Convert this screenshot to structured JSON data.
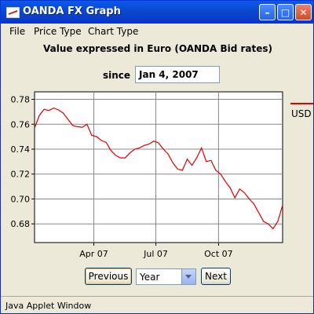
{
  "window": {
    "title": "OANDA FX Graph"
  },
  "menu": {
    "items": [
      "File",
      "Price Type",
      "Chart Type"
    ]
  },
  "header": {
    "title": "Value expressed in Euro (OANDA Bid rates)",
    "since_label": "since",
    "since_value": "Jan 4, 2007"
  },
  "controls": {
    "previous_label": "Previous",
    "period_value": "Year",
    "next_label": "Next"
  },
  "status": {
    "text": "Java Applet Window"
  },
  "chart_data": {
    "type": "line",
    "title": "",
    "xlabel": "",
    "ylabel": "",
    "x_tick_labels": [
      "Apr 07",
      "Jul 07",
      "Oct 07"
    ],
    "y_tick_labels": [
      "0.68",
      "0.70",
      "0.72",
      "0.74",
      "0.76",
      "0.78"
    ],
    "ylim": [
      0.665,
      0.786
    ],
    "grid": true,
    "legend": "right",
    "series": [
      {
        "name": "USD",
        "color": "#e00000",
        "x": [
          "2007-01-04",
          "2007-01-11",
          "2007-01-18",
          "2007-01-25",
          "2007-02-01",
          "2007-02-08",
          "2007-02-15",
          "2007-02-22",
          "2007-03-01",
          "2007-03-08",
          "2007-03-15",
          "2007-03-22",
          "2007-03-29",
          "2007-04-05",
          "2007-04-12",
          "2007-04-19",
          "2007-04-26",
          "2007-05-03",
          "2007-05-10",
          "2007-05-17",
          "2007-05-24",
          "2007-05-31",
          "2007-06-07",
          "2007-06-14",
          "2007-06-21",
          "2007-06-28",
          "2007-07-05",
          "2007-07-12",
          "2007-07-19",
          "2007-07-26",
          "2007-08-02",
          "2007-08-09",
          "2007-08-16",
          "2007-08-23",
          "2007-08-30",
          "2007-09-06",
          "2007-09-13",
          "2007-09-20",
          "2007-09-27",
          "2007-10-04",
          "2007-10-11",
          "2007-10-18",
          "2007-10-25",
          "2007-11-01",
          "2007-11-08",
          "2007-11-15",
          "2007-11-22",
          "2007-11-29",
          "2007-12-06",
          "2007-12-13",
          "2007-12-20",
          "2007-12-27",
          "2008-01-03"
        ],
        "values": [
          0.757,
          0.767,
          0.772,
          0.771,
          0.773,
          0.7715,
          0.769,
          0.764,
          0.759,
          0.758,
          0.7575,
          0.76,
          0.751,
          0.75,
          0.747,
          0.7455,
          0.739,
          0.735,
          0.733,
          0.733,
          0.737,
          0.74,
          0.741,
          0.743,
          0.744,
          0.7465,
          0.745,
          0.74,
          0.736,
          0.729,
          0.724,
          0.723,
          0.732,
          0.727,
          0.733,
          0.741,
          0.73,
          0.731,
          0.723,
          0.72,
          0.714,
          0.709,
          0.701,
          0.708,
          0.705,
          0.7,
          0.696,
          0.689,
          0.682,
          0.68,
          0.676,
          0.682,
          0.695
        ]
      }
    ]
  }
}
